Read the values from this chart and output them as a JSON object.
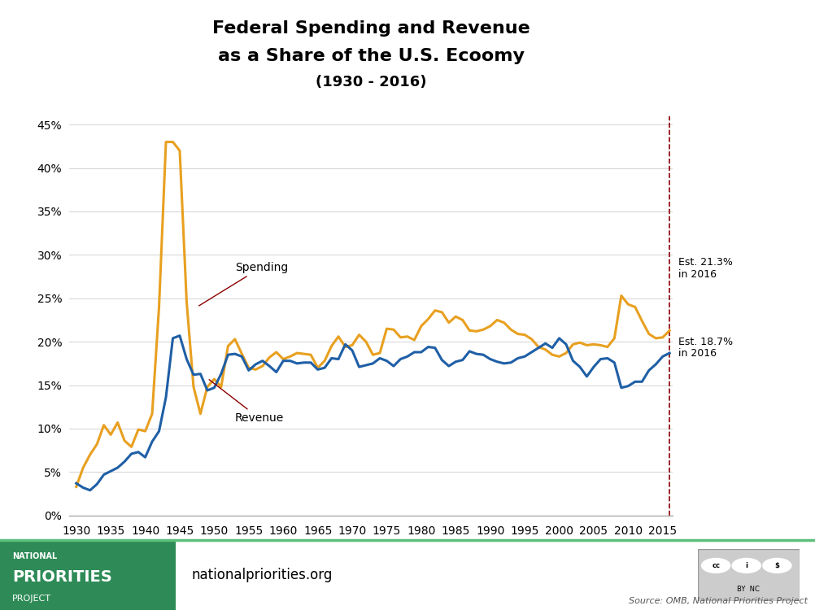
{
  "title_line1": "Federal Spending and Revenue",
  "title_line2": "as a Share of the U.S. Ecoomy",
  "title_line3": "(1930 - 2016)",
  "spending_color": "#E8A020",
  "revenue_color": "#1F5FA6",
  "annotation_color": "#8B0000",
  "dashed_line_color": "#8B0000",
  "background_color": "#FFFFFF",
  "ylim_max": 0.46,
  "yticks": [
    0.0,
    0.05,
    0.1,
    0.15,
    0.2,
    0.25,
    0.3,
    0.35,
    0.4,
    0.45
  ],
  "xticks": [
    1930,
    1935,
    1940,
    1945,
    1950,
    1955,
    1960,
    1965,
    1970,
    1975,
    1980,
    1985,
    1990,
    1995,
    2000,
    2005,
    2010,
    2015
  ],
  "spending_label": "Spending",
  "revenue_label": "Revenue",
  "est_spending_text": "Est. 21.3%\nin 2016",
  "est_revenue_text": "Est. 18.7%\nin 2016",
  "footer_website": "nationalpriorities.org",
  "footer_source": "Source: OMB, National Priorities Project",
  "years": [
    1930,
    1931,
    1932,
    1933,
    1934,
    1935,
    1936,
    1937,
    1938,
    1939,
    1940,
    1941,
    1942,
    1943,
    1944,
    1945,
    1946,
    1947,
    1948,
    1949,
    1950,
    1951,
    1952,
    1953,
    1954,
    1955,
    1956,
    1957,
    1958,
    1959,
    1960,
    1961,
    1962,
    1963,
    1964,
    1965,
    1966,
    1967,
    1968,
    1969,
    1970,
    1971,
    1972,
    1973,
    1974,
    1975,
    1976,
    1977,
    1978,
    1979,
    1980,
    1981,
    1982,
    1983,
    1984,
    1985,
    1986,
    1987,
    1988,
    1989,
    1990,
    1991,
    1992,
    1993,
    1994,
    1995,
    1996,
    1997,
    1998,
    1999,
    2000,
    2001,
    2002,
    2003,
    2004,
    2005,
    2006,
    2007,
    2008,
    2009,
    2010,
    2011,
    2012,
    2013,
    2014,
    2015,
    2016
  ],
  "spending": [
    0.033,
    0.055,
    0.07,
    0.082,
    0.104,
    0.093,
    0.107,
    0.086,
    0.079,
    0.099,
    0.097,
    0.117,
    0.24,
    0.43,
    0.43,
    0.42,
    0.246,
    0.148,
    0.117,
    0.148,
    0.157,
    0.148,
    0.195,
    0.203,
    0.186,
    0.17,
    0.168,
    0.172,
    0.182,
    0.188,
    0.18,
    0.183,
    0.187,
    0.186,
    0.185,
    0.17,
    0.178,
    0.195,
    0.206,
    0.194,
    0.196,
    0.208,
    0.2,
    0.185,
    0.187,
    0.215,
    0.214,
    0.205,
    0.206,
    0.202,
    0.218,
    0.226,
    0.236,
    0.234,
    0.222,
    0.229,
    0.225,
    0.213,
    0.212,
    0.214,
    0.218,
    0.225,
    0.222,
    0.214,
    0.209,
    0.208,
    0.203,
    0.194,
    0.191,
    0.185,
    0.183,
    0.187,
    0.197,
    0.199,
    0.196,
    0.197,
    0.196,
    0.194,
    0.204,
    0.253,
    0.243,
    0.24,
    0.224,
    0.209,
    0.204,
    0.205,
    0.213
  ],
  "revenue": [
    0.037,
    0.032,
    0.029,
    0.036,
    0.047,
    0.051,
    0.055,
    0.062,
    0.071,
    0.073,
    0.067,
    0.085,
    0.097,
    0.136,
    0.204,
    0.207,
    0.18,
    0.162,
    0.163,
    0.144,
    0.147,
    0.163,
    0.185,
    0.186,
    0.183,
    0.167,
    0.174,
    0.178,
    0.172,
    0.165,
    0.178,
    0.178,
    0.175,
    0.176,
    0.176,
    0.168,
    0.17,
    0.181,
    0.18,
    0.197,
    0.19,
    0.171,
    0.173,
    0.175,
    0.181,
    0.178,
    0.172,
    0.18,
    0.183,
    0.188,
    0.188,
    0.194,
    0.193,
    0.179,
    0.172,
    0.177,
    0.179,
    0.189,
    0.186,
    0.185,
    0.18,
    0.177,
    0.175,
    0.176,
    0.181,
    0.183,
    0.188,
    0.193,
    0.198,
    0.193,
    0.204,
    0.197,
    0.178,
    0.171,
    0.16,
    0.171,
    0.18,
    0.181,
    0.176,
    0.147,
    0.149,
    0.154,
    0.154,
    0.167,
    0.174,
    0.183,
    0.187
  ],
  "npp_green": "#2E8B57",
  "separator_green": "#5CBF7A"
}
